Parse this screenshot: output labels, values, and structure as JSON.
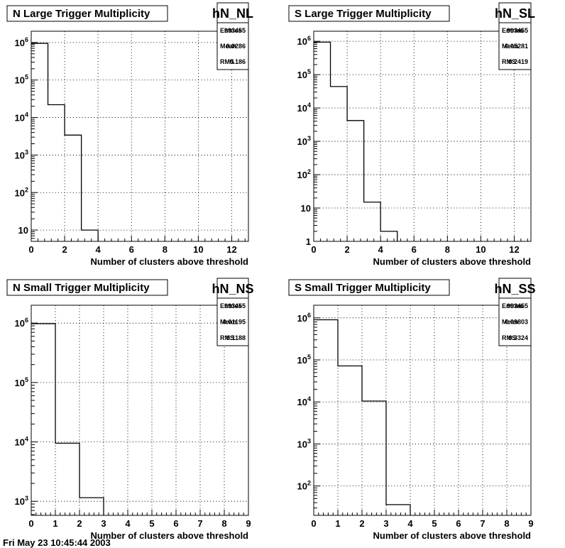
{
  "chart_data": [
    {
      "type": "histogram",
      "title": "N Large Trigger Multiplicity",
      "hist_name": "hN_NL",
      "stats": [
        {
          "label": "Entries",
          "value": "993455"
        },
        {
          "label": "Mean",
          "value": "0.0286"
        },
        {
          "label": "RMS",
          "value": "0.186"
        }
      ],
      "xlabel": "Number of clusters above threshold",
      "xlim": [
        0,
        13
      ],
      "xticks": [
        0,
        2,
        4,
        6,
        8,
        10,
        12
      ],
      "yscale": "log",
      "ylim": [
        5,
        2000000
      ],
      "yticks": [
        {
          "value": 10,
          "label": "10"
        },
        {
          "value": 100,
          "label": "10^2"
        },
        {
          "value": 1000,
          "label": "10^3"
        },
        {
          "value": 10000,
          "label": "10^4"
        },
        {
          "value": 100000,
          "label": "10^5"
        },
        {
          "value": 1000000,
          "label": "10^6"
        }
      ],
      "bins": [
        {
          "x0": 0,
          "x1": 1,
          "y": 950000
        },
        {
          "x0": 1,
          "x1": 2,
          "y": 22000
        },
        {
          "x0": 2,
          "x1": 3,
          "y": 3400
        },
        {
          "x0": 3,
          "x1": 4,
          "y": 10
        }
      ],
      "grid": true
    },
    {
      "type": "histogram",
      "title": "S Large Trigger Multiplicity",
      "hist_name": "hN_SL",
      "stats": [
        {
          "label": "Entries",
          "value": "993455"
        },
        {
          "label": "Mean",
          "value": "0.05281"
        },
        {
          "label": "RMS",
          "value": "0.2419"
        }
      ],
      "xlabel": "Number of clusters above threshold",
      "xlim": [
        0,
        13
      ],
      "xticks": [
        0,
        2,
        4,
        6,
        8,
        10,
        12
      ],
      "yscale": "log",
      "ylim": [
        1,
        2000000
      ],
      "yticks": [
        {
          "value": 1,
          "label": "1"
        },
        {
          "value": 10,
          "label": "10"
        },
        {
          "value": 100,
          "label": "10^2"
        },
        {
          "value": 1000,
          "label": "10^3"
        },
        {
          "value": 10000,
          "label": "10^4"
        },
        {
          "value": 100000,
          "label": "10^5"
        },
        {
          "value": 1000000,
          "label": "10^6"
        }
      ],
      "bins": [
        {
          "x0": 0,
          "x1": 1,
          "y": 940000
        },
        {
          "x0": 1,
          "x1": 2,
          "y": 44000
        },
        {
          "x0": 2,
          "x1": 3,
          "y": 4200
        },
        {
          "x0": 3,
          "x1": 4,
          "y": 15
        },
        {
          "x0": 4,
          "x1": 5,
          "y": 2
        }
      ],
      "grid": true
    },
    {
      "type": "histogram",
      "title": "N Small Trigger Multiplicity",
      "hist_name": "hN_NS",
      "stats": [
        {
          "label": "Entries",
          "value": "993455"
        },
        {
          "label": "Mean",
          "value": "0.01195"
        },
        {
          "label": "RMS",
          "value": "0.1188"
        }
      ],
      "xlabel": "Number of clusters above threshold",
      "xlim": [
        0,
        9
      ],
      "xticks": [
        0,
        1,
        2,
        3,
        4,
        5,
        6,
        7,
        8,
        9
      ],
      "yscale": "log",
      "ylim": [
        580,
        2000000
      ],
      "yticks": [
        {
          "value": 1000,
          "label": "10^3"
        },
        {
          "value": 10000,
          "label": "10^4"
        },
        {
          "value": 100000,
          "label": "10^5"
        },
        {
          "value": 1000000,
          "label": "10^6"
        }
      ],
      "bins": [
        {
          "x0": 0,
          "x1": 1,
          "y": 980000
        },
        {
          "x0": 1,
          "x1": 2,
          "y": 9500
        },
        {
          "x0": 2,
          "x1": 3,
          "y": 1150
        }
      ],
      "grid": true
    },
    {
      "type": "histogram",
      "title": "S Small Trigger Multiplicity",
      "hist_name": "hN_SS",
      "stats": [
        {
          "label": "Entries",
          "value": "993455"
        },
        {
          "label": "Mean",
          "value": "0.09803"
        },
        {
          "label": "RMS",
          "value": "0.3324"
        }
      ],
      "xlabel": "Number of clusters above threshold",
      "xlim": [
        0,
        9
      ],
      "xticks": [
        0,
        1,
        2,
        3,
        4,
        5,
        6,
        7,
        8,
        9
      ],
      "yscale": "log",
      "ylim": [
        20,
        2000000
      ],
      "yticks": [
        {
          "value": 100,
          "label": "10^2"
        },
        {
          "value": 1000,
          "label": "10^3"
        },
        {
          "value": 10000,
          "label": "10^4"
        },
        {
          "value": 100000,
          "label": "10^5"
        },
        {
          "value": 1000000,
          "label": "10^6"
        }
      ],
      "bins": [
        {
          "x0": 0,
          "x1": 1,
          "y": 900000
        },
        {
          "x0": 1,
          "x1": 2,
          "y": 72000
        },
        {
          "x0": 2,
          "x1": 3,
          "y": 10500
        },
        {
          "x0": 3,
          "x1": 4,
          "y": 36
        }
      ],
      "grid": true
    }
  ],
  "footer": "Fri May 23 10:45:44 2003"
}
